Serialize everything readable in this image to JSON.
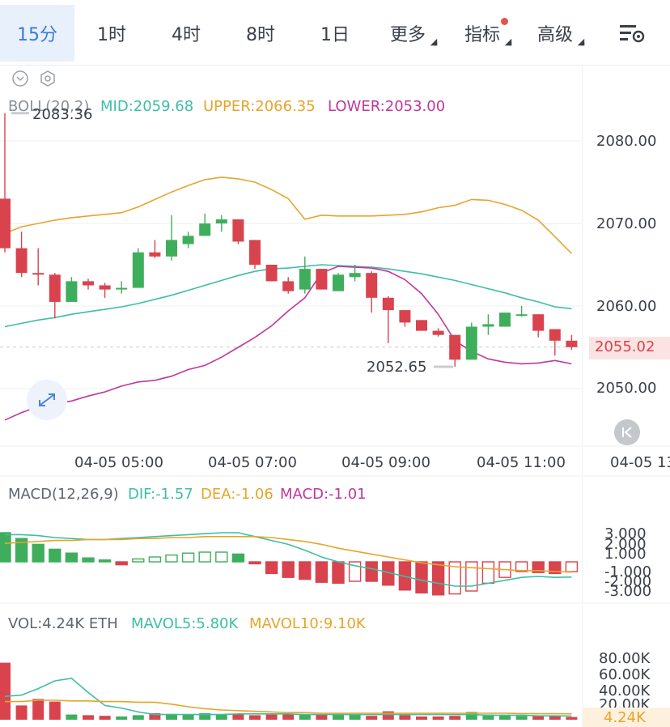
{
  "tabs": [
    {
      "label": "15分",
      "active": true
    },
    {
      "label": "1时"
    },
    {
      "label": "4时"
    },
    {
      "label": "8时"
    },
    {
      "label": "1日"
    },
    {
      "label": "更多",
      "dropdown": true
    },
    {
      "label": "指标",
      "dropdown": true,
      "dot": true
    },
    {
      "label": "高级",
      "dropdown": true
    }
  ],
  "boll": {
    "title": "BOLL(20,2)",
    "mid": "MID:2059.68",
    "upper": "UPPER:2066.35",
    "lower": "LOWER:2053.00",
    "high_marker": "2083.36",
    "low_marker": "2052.65",
    "current_price": "2055.02"
  },
  "price_axis": [
    "2080.00",
    "2070.00",
    "2060.00",
    "2050.00"
  ],
  "time_axis": [
    "04-05 05:00",
    "04-05 07:00",
    "04-05 09:00",
    "04-05 11:00",
    "04-05 13"
  ],
  "macd": {
    "title": "MACD(12,26,9)",
    "dif": "DIF:-1.57",
    "dea": "DEA:-1.06",
    "macd": "MACD:-1.01",
    "axis": [
      "3.000",
      "2.000",
      "1.000",
      "-1.000",
      "-2.000",
      "-3.000"
    ]
  },
  "vol": {
    "title": "VOL:4.24K ETH",
    "mavol5": "MAVOL5:5.80K",
    "mavol10": "MAVOL10:9.10K",
    "axis": [
      "80.00K",
      "60.00K",
      "40.00K",
      "20.00K"
    ],
    "current": "4.24K"
  },
  "colors": {
    "up": "#3fae5c",
    "down": "#d9434e",
    "mid": "#3dbfa3",
    "upper": "#e6a52a",
    "lower": "#c2379b",
    "accent": "#3a7bd5"
  },
  "chart_data": {
    "type": "candlestick",
    "candles": [
      {
        "o": 2073.0,
        "h": 2083.36,
        "l": 2066.5,
        "c": 2067.0
      },
      {
        "o": 2067.0,
        "h": 2069.0,
        "l": 2063.5,
        "c": 2064.0
      },
      {
        "o": 2064.0,
        "h": 2067.0,
        "l": 2062.5,
        "c": 2063.8
      },
      {
        "o": 2063.8,
        "h": 2064.0,
        "l": 2058.5,
        "c": 2060.5
      },
      {
        "o": 2060.5,
        "h": 2063.5,
        "l": 2060.5,
        "c": 2063.0
      },
      {
        "o": 2063.0,
        "h": 2063.3,
        "l": 2062.0,
        "c": 2062.5
      },
      {
        "o": 2062.5,
        "h": 2062.8,
        "l": 2061.0,
        "c": 2062.0
      },
      {
        "o": 2062.0,
        "h": 2063.0,
        "l": 2061.5,
        "c": 2062.2
      },
      {
        "o": 2062.2,
        "h": 2067.0,
        "l": 2062.2,
        "c": 2066.5
      },
      {
        "o": 2066.5,
        "h": 2068.0,
        "l": 2065.8,
        "c": 2066.0
      },
      {
        "o": 2066.0,
        "h": 2071.0,
        "l": 2065.5,
        "c": 2068.0
      },
      {
        "o": 2067.5,
        "h": 2069.0,
        "l": 2067.0,
        "c": 2068.5
      },
      {
        "o": 2068.5,
        "h": 2071.2,
        "l": 2068.5,
        "c": 2070.0
      },
      {
        "o": 2070.0,
        "h": 2071.0,
        "l": 2069.0,
        "c": 2070.5
      },
      {
        "o": 2070.5,
        "h": 2070.5,
        "l": 2067.5,
        "c": 2067.8
      },
      {
        "o": 2068.0,
        "h": 2068.0,
        "l": 2064.5,
        "c": 2065.0
      },
      {
        "o": 2065.0,
        "h": 2065.0,
        "l": 2063.0,
        "c": 2063.0
      },
      {
        "o": 2063.0,
        "h": 2063.5,
        "l": 2061.5,
        "c": 2061.8
      },
      {
        "o": 2062.0,
        "h": 2066.0,
        "l": 2061.5,
        "c": 2064.5
      },
      {
        "o": 2064.5,
        "h": 2064.5,
        "l": 2062.0,
        "c": 2062.0
      },
      {
        "o": 2061.8,
        "h": 2064.0,
        "l": 2061.8,
        "c": 2063.8
      },
      {
        "o": 2063.5,
        "h": 2065.0,
        "l": 2063.0,
        "c": 2064.0
      },
      {
        "o": 2064.0,
        "h": 2064.2,
        "l": 2059.2,
        "c": 2061.0
      },
      {
        "o": 2061.0,
        "h": 2061.2,
        "l": 2055.5,
        "c": 2059.5
      },
      {
        "o": 2059.5,
        "h": 2059.5,
        "l": 2057.5,
        "c": 2058.0
      },
      {
        "o": 2058.3,
        "h": 2058.3,
        "l": 2057.0,
        "c": 2057.0
      },
      {
        "o": 2057.0,
        "h": 2057.3,
        "l": 2056.3,
        "c": 2056.5
      },
      {
        "o": 2056.5,
        "h": 2056.5,
        "l": 2052.65,
        "c": 2053.5
      },
      {
        "o": 2053.5,
        "h": 2058.0,
        "l": 2053.5,
        "c": 2057.5
      },
      {
        "o": 2057.5,
        "h": 2059.0,
        "l": 2056.5,
        "c": 2057.8
      },
      {
        "o": 2057.5,
        "h": 2059.0,
        "l": 2057.5,
        "c": 2059.2
      },
      {
        "o": 2059.0,
        "h": 2060.0,
        "l": 2058.7,
        "c": 2059.0
      },
      {
        "o": 2059.0,
        "h": 2059.0,
        "l": 2056.2,
        "c": 2057.0
      },
      {
        "o": 2057.2,
        "h": 2057.2,
        "l": 2054.0,
        "c": 2055.8
      },
      {
        "o": 2055.8,
        "h": 2056.5,
        "l": 2054.7,
        "c": 2055.02
      }
    ],
    "boll_mid": [
      2057.5,
      2057.9,
      2058.3,
      2058.6,
      2059.0,
      2059.3,
      2059.6,
      2059.9,
      2060.3,
      2060.8,
      2061.3,
      2061.9,
      2062.5,
      2063.1,
      2063.7,
      2064.2,
      2064.5,
      2064.6,
      2064.8,
      2065.0,
      2064.9,
      2064.8,
      2064.7,
      2064.5,
      2064.2,
      2063.9,
      2063.5,
      2063.1,
      2062.6,
      2062.1,
      2061.6,
      2061.0,
      2060.5,
      2059.9,
      2059.68
    ],
    "boll_upper": [
      2068.8,
      2069.6,
      2070.0,
      2070.4,
      2070.7,
      2070.9,
      2071.1,
      2071.3,
      2072.0,
      2072.9,
      2073.8,
      2074.6,
      2075.3,
      2075.6,
      2075.4,
      2075.0,
      2074.1,
      2073.0,
      2070.5,
      2071.0,
      2070.9,
      2070.9,
      2070.9,
      2071.0,
      2071.1,
      2071.4,
      2071.9,
      2072.2,
      2072.9,
      2072.8,
      2072.3,
      2071.6,
      2070.4,
      2068.4,
      2066.35
    ],
    "boll_lower": [
      2046.2,
      2047.1,
      2047.8,
      2048.2,
      2048.5,
      2049.1,
      2049.6,
      2050.3,
      2050.8,
      2051.0,
      2051.5,
      2052.3,
      2052.8,
      2053.8,
      2055.0,
      2056.2,
      2057.6,
      2059.4,
      2061.0,
      2064.0,
      2064.8,
      2064.7,
      2064.6,
      2064.2,
      2063.2,
      2061.5,
      2059.0,
      2055.8,
      2054.5,
      2053.6,
      2053.2,
      2053.0,
      2053.1,
      2053.4,
      2053.0
    ],
    "macd_hist": [
      3.0,
      2.4,
      1.8,
      1.3,
      0.9,
      0.4,
      0.2,
      -0.3,
      0.3,
      0.5,
      0.7,
      0.9,
      1.0,
      1.0,
      0.8,
      -0.2,
      -1.2,
      -1.6,
      -1.8,
      -2.1,
      -2.2,
      -2.0,
      -2.0,
      -2.4,
      -2.9,
      -3.2,
      -3.4,
      -3.3,
      -3.0,
      -2.2,
      -1.6,
      -1.0,
      -1.1,
      -1.2,
      -1.01
    ],
    "macd_dif": [
      2.8,
      2.8,
      2.7,
      2.5,
      2.4,
      2.3,
      2.3,
      2.4,
      2.5,
      2.6,
      2.7,
      2.8,
      2.9,
      3.0,
      3.0,
      2.6,
      2.2,
      1.8,
      1.2,
      0.5,
      0.0,
      -0.4,
      -0.7,
      -1.1,
      -1.5,
      -1.9,
      -2.2,
      -2.5,
      -2.5,
      -2.2,
      -1.9,
      -1.6,
      -1.5,
      -1.6,
      -1.57
    ],
    "macd_dea": [
      1.9,
      2.0,
      2.1,
      2.2,
      2.2,
      2.3,
      2.3,
      2.3,
      2.4,
      2.4,
      2.5,
      2.5,
      2.6,
      2.6,
      2.6,
      2.6,
      2.5,
      2.3,
      2.1,
      1.8,
      1.4,
      1.1,
      0.8,
      0.5,
      0.2,
      -0.1,
      -0.3,
      -0.5,
      -0.6,
      -0.7,
      -0.8,
      -0.9,
      -0.9,
      -1.0,
      -1.06
    ],
    "volume": [
      88,
      22,
      32,
      28,
      8,
      7,
      6,
      5,
      7,
      10,
      9,
      8,
      10,
      8,
      9,
      7,
      8,
      9,
      8,
      8,
      9,
      8,
      6,
      13,
      7,
      5,
      5,
      6,
      12,
      8,
      7,
      6,
      6,
      6,
      4.24
    ],
    "mavol5": [
      36,
      38,
      48,
      60,
      64,
      42,
      22,
      18,
      12,
      8,
      8,
      8,
      8,
      8,
      9,
      9,
      9,
      9,
      8,
      8,
      8,
      8,
      8,
      8,
      8,
      8,
      8,
      8,
      8,
      7,
      7,
      7,
      6,
      6,
      5.8
    ],
    "mavol10": [
      28,
      28,
      30,
      30,
      29,
      29,
      28,
      28,
      27,
      27,
      24,
      20,
      17,
      15,
      14,
      13,
      12,
      11,
      11,
      10,
      10,
      10,
      10,
      10,
      10,
      10,
      10,
      10,
      10,
      10,
      10,
      9.5,
      9.3,
      9.2,
      9.1
    ]
  }
}
